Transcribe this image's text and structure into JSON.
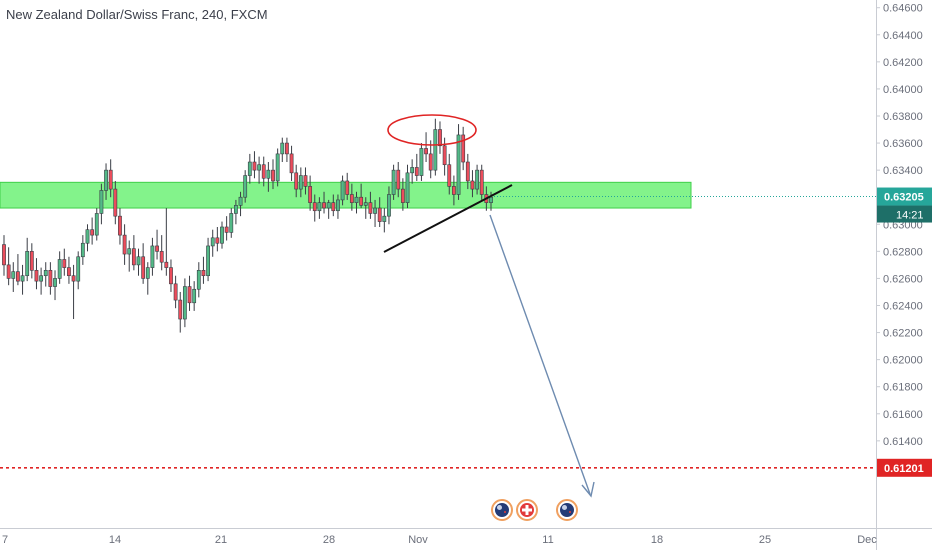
{
  "chart_data": {
    "type": "candlestick",
    "title": "New Zealand Dollar/Swiss Franc, 240, FXCM",
    "ylim": [
      0.61,
      0.6462
    ],
    "y_ticks": [
      "0.64600",
      "0.64400",
      "0.64200",
      "0.64000",
      "0.63800",
      "0.63600",
      "0.63400",
      "0.63000",
      "0.62800",
      "0.62600",
      "0.62400",
      "0.62200",
      "0.62000",
      "0.61800",
      "0.61600",
      "0.61400"
    ],
    "x_ticks": [
      "7",
      "14",
      "21",
      "28",
      "Nov",
      "11",
      "18",
      "25",
      "Dec"
    ],
    "price_label": {
      "value": "0.63205",
      "countdown": "14:21"
    },
    "target_label": {
      "value": "0.61201"
    },
    "support_zone": {
      "from": 0.6312,
      "to": 0.6331
    },
    "colors": {
      "up": "#53b987",
      "down": "#eb4d5c",
      "zone": "#64f06e",
      "price": "#26a69a",
      "target": "#e02424",
      "arrow": "#6e8bb0",
      "ellipse": "#e02424"
    },
    "annotations": [
      "resistance-circle",
      "rising-trendline",
      "projection-arrow",
      "target-level"
    ],
    "event_markers": [
      "nz-flag-icon",
      "swiss-flag-icon",
      "nz-flag-icon"
    ],
    "candles": [
      [
        0.6285,
        0.6292,
        0.6262,
        0.627
      ],
      [
        0.627,
        0.6283,
        0.6255,
        0.626
      ],
      [
        0.626,
        0.6272,
        0.625,
        0.6265
      ],
      [
        0.6265,
        0.6278,
        0.6255,
        0.6258
      ],
      [
        0.6258,
        0.627,
        0.6248,
        0.6262
      ],
      [
        0.6262,
        0.629,
        0.6258,
        0.628
      ],
      [
        0.628,
        0.6286,
        0.626,
        0.6266
      ],
      [
        0.6266,
        0.6275,
        0.6252,
        0.6258
      ],
      [
        0.6258,
        0.6268,
        0.6248,
        0.6262
      ],
      [
        0.6262,
        0.6272,
        0.6254,
        0.6266
      ],
      [
        0.6266,
        0.6272,
        0.6248,
        0.6254
      ],
      [
        0.6254,
        0.6266,
        0.6244,
        0.626
      ],
      [
        0.626,
        0.628,
        0.6256,
        0.6274
      ],
      [
        0.6274,
        0.6282,
        0.6262,
        0.6268
      ],
      [
        0.6268,
        0.6276,
        0.6256,
        0.6262
      ],
      [
        0.6262,
        0.627,
        0.623,
        0.6258
      ],
      [
        0.6258,
        0.628,
        0.6252,
        0.6276
      ],
      [
        0.6276,
        0.6292,
        0.627,
        0.6286
      ],
      [
        0.6286,
        0.63,
        0.628,
        0.6296
      ],
      [
        0.6296,
        0.6305,
        0.6285,
        0.6292
      ],
      [
        0.6292,
        0.6312,
        0.6288,
        0.6308
      ],
      [
        0.6308,
        0.633,
        0.63,
        0.6325
      ],
      [
        0.6325,
        0.6345,
        0.6318,
        0.634
      ],
      [
        0.634,
        0.6348,
        0.632,
        0.6326
      ],
      [
        0.6326,
        0.6332,
        0.63,
        0.6306
      ],
      [
        0.6306,
        0.6312,
        0.6285,
        0.6292
      ],
      [
        0.6292,
        0.63,
        0.627,
        0.6278
      ],
      [
        0.6278,
        0.6288,
        0.6265,
        0.6282
      ],
      [
        0.6282,
        0.6292,
        0.6266,
        0.627
      ],
      [
        0.627,
        0.6282,
        0.6262,
        0.6276
      ],
      [
        0.6276,
        0.6286,
        0.6256,
        0.626
      ],
      [
        0.626,
        0.6272,
        0.6248,
        0.6268
      ],
      [
        0.6268,
        0.629,
        0.6262,
        0.6284
      ],
      [
        0.6284,
        0.6296,
        0.6274,
        0.628
      ],
      [
        0.628,
        0.6292,
        0.6266,
        0.6272
      ],
      [
        0.6272,
        0.6312,
        0.6262,
        0.6268
      ],
      [
        0.6268,
        0.6274,
        0.625,
        0.6256
      ],
      [
        0.6256,
        0.6262,
        0.6238,
        0.6244
      ],
      [
        0.6244,
        0.625,
        0.622,
        0.623
      ],
      [
        0.623,
        0.626,
        0.6224,
        0.6254
      ],
      [
        0.6254,
        0.6262,
        0.6236,
        0.6242
      ],
      [
        0.6242,
        0.6258,
        0.6236,
        0.6252
      ],
      [
        0.6252,
        0.6272,
        0.6246,
        0.6266
      ],
      [
        0.6266,
        0.6276,
        0.6256,
        0.6262
      ],
      [
        0.6262,
        0.629,
        0.6258,
        0.6284
      ],
      [
        0.6284,
        0.6296,
        0.6276,
        0.629
      ],
      [
        0.629,
        0.6298,
        0.628,
        0.6286
      ],
      [
        0.6286,
        0.6302,
        0.6282,
        0.6298
      ],
      [
        0.6298,
        0.6306,
        0.6288,
        0.6294
      ],
      [
        0.6294,
        0.6312,
        0.629,
        0.6308
      ],
      [
        0.6308,
        0.6318,
        0.63,
        0.6314
      ],
      [
        0.6314,
        0.6324,
        0.6306,
        0.632
      ],
      [
        0.632,
        0.634,
        0.6316,
        0.6336
      ],
      [
        0.6336,
        0.6352,
        0.633,
        0.6346
      ],
      [
        0.6346,
        0.6354,
        0.6334,
        0.634
      ],
      [
        0.634,
        0.635,
        0.633,
        0.6344
      ],
      [
        0.6344,
        0.635,
        0.6328,
        0.6334
      ],
      [
        0.6334,
        0.6346,
        0.6324,
        0.634
      ],
      [
        0.634,
        0.6348,
        0.6326,
        0.6332
      ],
      [
        0.6332,
        0.6356,
        0.6328,
        0.6352
      ],
      [
        0.6352,
        0.6364,
        0.6346,
        0.636
      ],
      [
        0.636,
        0.6364,
        0.6346,
        0.6352
      ],
      [
        0.6352,
        0.6358,
        0.6332,
        0.6338
      ],
      [
        0.6338,
        0.6344,
        0.632,
        0.6326
      ],
      [
        0.6326,
        0.6342,
        0.632,
        0.6336
      ],
      [
        0.6336,
        0.6342,
        0.6322,
        0.6328
      ],
      [
        0.6328,
        0.6336,
        0.631,
        0.6316
      ],
      [
        0.6316,
        0.6322,
        0.6302,
        0.631
      ],
      [
        0.631,
        0.632,
        0.6304,
        0.6316
      ],
      [
        0.6316,
        0.6324,
        0.6308,
        0.6312
      ],
      [
        0.6312,
        0.6318,
        0.6304,
        0.6316
      ],
      [
        0.6316,
        0.6322,
        0.6306,
        0.631
      ],
      [
        0.631,
        0.6322,
        0.6304,
        0.6318
      ],
      [
        0.6318,
        0.6336,
        0.6314,
        0.6332
      ],
      [
        0.6332,
        0.6338,
        0.6318,
        0.6322
      ],
      [
        0.6322,
        0.633,
        0.631,
        0.6316
      ],
      [
        0.6316,
        0.6324,
        0.6308,
        0.632
      ],
      [
        0.632,
        0.633,
        0.6312,
        0.6314
      ],
      [
        0.6314,
        0.632,
        0.6304,
        0.6316
      ],
      [
        0.6316,
        0.6324,
        0.6304,
        0.6308
      ],
      [
        0.6308,
        0.6318,
        0.6298,
        0.6312
      ],
      [
        0.6312,
        0.632,
        0.6298,
        0.6302
      ],
      [
        0.6302,
        0.6312,
        0.6294,
        0.6306
      ],
      [
        0.6306,
        0.6328,
        0.63,
        0.6322
      ],
      [
        0.6322,
        0.6344,
        0.6318,
        0.634
      ],
      [
        0.634,
        0.6346,
        0.632,
        0.6326
      ],
      [
        0.6326,
        0.6334,
        0.631,
        0.6316
      ],
      [
        0.6316,
        0.6344,
        0.6312,
        0.6338
      ],
      [
        0.6338,
        0.6348,
        0.633,
        0.6342
      ],
      [
        0.6342,
        0.6352,
        0.6332,
        0.6336
      ],
      [
        0.6336,
        0.636,
        0.6332,
        0.6356
      ],
      [
        0.6356,
        0.6368,
        0.6346,
        0.6352
      ],
      [
        0.6352,
        0.6362,
        0.6334,
        0.634
      ],
      [
        0.634,
        0.6378,
        0.6336,
        0.637
      ],
      [
        0.637,
        0.6376,
        0.6352,
        0.6358
      ],
      [
        0.6358,
        0.6364,
        0.6336,
        0.6344
      ],
      [
        0.6344,
        0.6352,
        0.6322,
        0.6328
      ],
      [
        0.6328,
        0.6336,
        0.6314,
        0.6322
      ],
      [
        0.6322,
        0.6374,
        0.6318,
        0.6366
      ],
      [
        0.6366,
        0.6372,
        0.634,
        0.6346
      ],
      [
        0.6346,
        0.6352,
        0.6326,
        0.6332
      ],
      [
        0.6332,
        0.634,
        0.632,
        0.6326
      ],
      [
        0.6326,
        0.6344,
        0.6322,
        0.634
      ],
      [
        0.634,
        0.6344,
        0.6318,
        0.6322
      ],
      [
        0.6322,
        0.6328,
        0.631,
        0.6316
      ],
      [
        0.6316,
        0.6324,
        0.631,
        0.632
      ]
    ]
  }
}
